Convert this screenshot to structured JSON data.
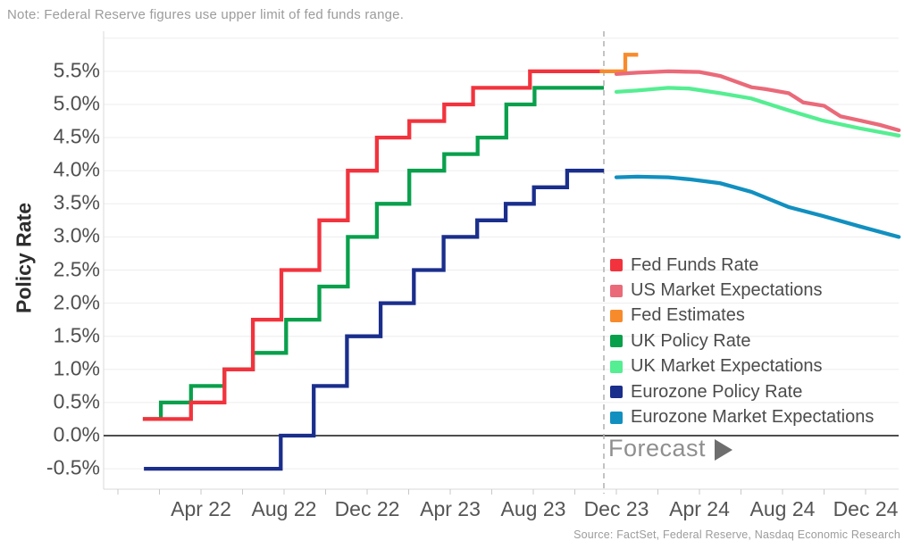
{
  "note": "Note: Federal Reserve figures use upper limit of fed funds range.",
  "source": "Source: FactSet, Federal Reserve, Nasdaq Economic Research",
  "forecast_label": "Forecast",
  "chart_data": {
    "type": "line",
    "title": "",
    "xlabel": "",
    "ylabel": "Policy Rate",
    "x_unit": "months since 2022-01-01 (0 = Jan 2022)",
    "xlim_months": [
      -1.69,
      36.6
    ],
    "ylim": [
      -0.81,
      6.1
    ],
    "grid": "horizontal-only",
    "legend_position": "inside-right",
    "forecast_divider_month": 22.4,
    "zero_line_value": 0,
    "y_gridlines": [
      -0.5,
      0.5,
      1.0,
      1.5,
      2.0,
      2.5,
      3.0,
      3.5,
      4.0,
      4.5,
      5.0,
      5.5,
      6.0
    ],
    "y_ticks": [
      {
        "value": 5.5,
        "label": "5.5%"
      },
      {
        "value": 5.0,
        "label": "5.0%"
      },
      {
        "value": 4.5,
        "label": "4.5%"
      },
      {
        "value": 4.0,
        "label": "4.0%"
      },
      {
        "value": 3.5,
        "label": "3.5%"
      },
      {
        "value": 3.0,
        "label": "3.0%"
      },
      {
        "value": 2.5,
        "label": "2.5%"
      },
      {
        "value": 2.0,
        "label": "2.0%"
      },
      {
        "value": 1.5,
        "label": "1.5%"
      },
      {
        "value": 1.0,
        "label": "1.0%"
      },
      {
        "value": 0.5,
        "label": "0.5%"
      },
      {
        "value": 0.0,
        "label": "0.0%"
      },
      {
        "value": -0.5,
        "label": "-0.5%"
      }
    ],
    "x_ticks_minor_months": [
      -1,
      1,
      3,
      5,
      7,
      9,
      11,
      13,
      15,
      17,
      19,
      21,
      23,
      25,
      27,
      29,
      31,
      33,
      35
    ],
    "x_labels": [
      {
        "m": 3,
        "label": "Apr 22"
      },
      {
        "m": 7,
        "label": "Aug 22"
      },
      {
        "m": 11,
        "label": "Dec 22"
      },
      {
        "m": 15,
        "label": "Apr 23"
      },
      {
        "m": 19,
        "label": "Aug 23"
      },
      {
        "m": 23,
        "label": "Dec 23"
      },
      {
        "m": 27,
        "label": "Apr 24"
      },
      {
        "m": 31,
        "label": "Aug 24"
      },
      {
        "m": 35,
        "label": "Dec 24"
      }
    ],
    "series": [
      {
        "name": "Fed Funds Rate",
        "color": "#f2333d",
        "style": "step",
        "points": [
          [
            0.2,
            0.25
          ],
          [
            2.52,
            0.5
          ],
          [
            4.13,
            1.0
          ],
          [
            5.5,
            1.75
          ],
          [
            6.87,
            2.5
          ],
          [
            8.7,
            3.25
          ],
          [
            10.07,
            4.0
          ],
          [
            11.47,
            4.5
          ],
          [
            13.03,
            4.75
          ],
          [
            14.71,
            5.0
          ],
          [
            16.1,
            5.25
          ],
          [
            18.84,
            5.5
          ],
          [
            22.4,
            5.5
          ]
        ]
      },
      {
        "name": "US Market Expectations",
        "color": "#ea6a79",
        "style": "line",
        "points": [
          [
            23,
            5.46
          ],
          [
            24,
            5.48
          ],
          [
            25.5,
            5.5
          ],
          [
            27,
            5.49
          ],
          [
            28,
            5.43
          ],
          [
            29.5,
            5.26
          ],
          [
            30.2,
            5.23
          ],
          [
            31.3,
            5.17
          ],
          [
            32,
            5.03
          ],
          [
            33,
            4.98
          ],
          [
            33.8,
            4.82
          ],
          [
            34.7,
            4.76
          ],
          [
            35.7,
            4.69
          ],
          [
            36.6,
            4.61
          ]
        ]
      },
      {
        "name": "Fed Estimates",
        "color": "#f78b2c",
        "style": "step",
        "points": [
          [
            22.2,
            5.5
          ],
          [
            23.43,
            5.75
          ],
          [
            24.05,
            5.75
          ]
        ]
      },
      {
        "name": "UK Policy Rate",
        "color": "#09a04c",
        "style": "step",
        "points": [
          [
            0.2,
            0.25
          ],
          [
            1.07,
            0.5
          ],
          [
            2.52,
            0.75
          ],
          [
            4.13,
            1.0
          ],
          [
            5.5,
            1.25
          ],
          [
            7.1,
            1.75
          ],
          [
            8.7,
            2.25
          ],
          [
            10.07,
            3.0
          ],
          [
            11.47,
            3.5
          ],
          [
            13.03,
            4.0
          ],
          [
            14.71,
            4.25
          ],
          [
            16.32,
            4.5
          ],
          [
            17.7,
            5.0
          ],
          [
            19.06,
            5.25
          ],
          [
            22.4,
            5.25
          ]
        ]
      },
      {
        "name": "UK Market Expectations",
        "color": "#55ee92",
        "style": "line",
        "points": [
          [
            23,
            5.19
          ],
          [
            24,
            5.21
          ],
          [
            25.5,
            5.25
          ],
          [
            26.5,
            5.24
          ],
          [
            28,
            5.17
          ],
          [
            29.5,
            5.09
          ],
          [
            31.3,
            4.91
          ],
          [
            32.9,
            4.76
          ],
          [
            34.7,
            4.64
          ],
          [
            36.6,
            4.53
          ]
        ]
      },
      {
        "name": "Eurozone Policy Rate",
        "color": "#1a2e8c",
        "style": "step",
        "points": [
          [
            0.25,
            -0.5
          ],
          [
            6.84,
            0.0
          ],
          [
            8.43,
            0.75
          ],
          [
            10.03,
            1.5
          ],
          [
            11.65,
            2.0
          ],
          [
            13.25,
            2.5
          ],
          [
            14.68,
            3.0
          ],
          [
            16.3,
            3.25
          ],
          [
            17.67,
            3.5
          ],
          [
            19.03,
            3.75
          ],
          [
            20.63,
            4.0
          ],
          [
            22.4,
            4.0
          ]
        ]
      },
      {
        "name": "Eurozone Market Expectations",
        "color": "#1190c0",
        "style": "line",
        "points": [
          [
            23,
            3.9
          ],
          [
            24,
            3.91
          ],
          [
            25.5,
            3.9
          ],
          [
            26.5,
            3.87
          ],
          [
            28,
            3.81
          ],
          [
            29.5,
            3.68
          ],
          [
            31.3,
            3.45
          ],
          [
            32.9,
            3.32
          ],
          [
            34.7,
            3.16
          ],
          [
            36.6,
            3.0
          ]
        ]
      }
    ]
  }
}
